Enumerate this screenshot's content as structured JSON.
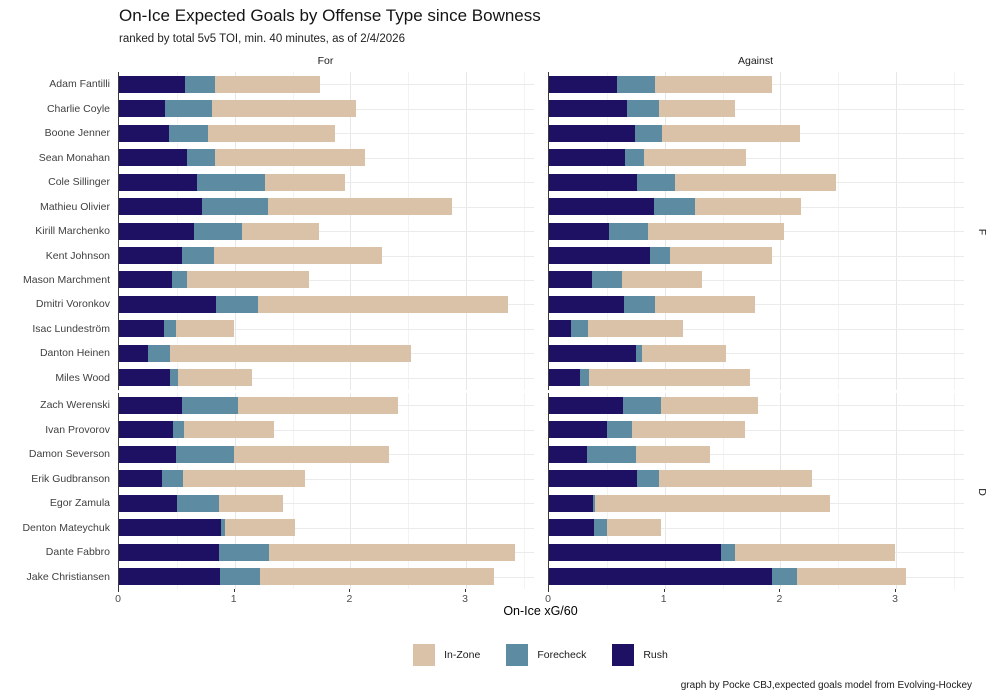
{
  "chart_data": {
    "type": "bar",
    "orientation": "horizontal",
    "stacked": true,
    "title": "On-Ice Expected Goals by Offense Type since Bowness",
    "subtitle": "ranked by total 5v5 TOI, min. 40 minutes, as of 2/4/2026",
    "xlabel": "On-Ice xG/60",
    "caption": "graph by Pocke CBJ,expected goals model from Evolving-Hockey",
    "facet_cols": [
      "For",
      "Against"
    ],
    "facet_rows": [
      "F",
      "D"
    ],
    "x_ticks": [
      0,
      1,
      2,
      3
    ],
    "x_max": 3.6,
    "grid": "major every 1.0, minor every 0.5, light gray on white",
    "legend": {
      "position": "bottom",
      "items": [
        {
          "key": "inzone",
          "label": "In-Zone",
          "color": "#d9c2a7"
        },
        {
          "key": "forecheck",
          "label": "Forecheck",
          "color": "#5c8ba2"
        },
        {
          "key": "rush",
          "label": "Rush",
          "color": "#1e1164"
        }
      ]
    },
    "segment_order": [
      "rush",
      "forecheck",
      "inzone"
    ],
    "players": [
      {
        "name": "Adam Fantilli",
        "group": "F",
        "for": {
          "rush": 0.57,
          "forecheck": 0.26,
          "inzone": 0.91
        },
        "against": {
          "rush": 0.59,
          "forecheck": 0.33,
          "inzone": 1.01
        }
      },
      {
        "name": "Charlie Coyle",
        "group": "F",
        "for": {
          "rush": 0.4,
          "forecheck": 0.4,
          "inzone": 1.25
        },
        "against": {
          "rush": 0.67,
          "forecheck": 0.28,
          "inzone": 0.66
        }
      },
      {
        "name": "Boone Jenner",
        "group": "F",
        "for": {
          "rush": 0.43,
          "forecheck": 0.34,
          "inzone": 1.1
        },
        "against": {
          "rush": 0.74,
          "forecheck": 0.24,
          "inzone": 1.19
        }
      },
      {
        "name": "Sean Monahan",
        "group": "F",
        "for": {
          "rush": 0.59,
          "forecheck": 0.24,
          "inzone": 1.3
        },
        "against": {
          "rush": 0.66,
          "forecheck": 0.16,
          "inzone": 0.88
        }
      },
      {
        "name": "Cole Sillinger",
        "group": "F",
        "for": {
          "rush": 0.67,
          "forecheck": 0.59,
          "inzone": 0.69
        },
        "against": {
          "rush": 0.76,
          "forecheck": 0.33,
          "inzone": 1.39
        }
      },
      {
        "name": "Mathieu Olivier",
        "group": "F",
        "for": {
          "rush": 0.72,
          "forecheck": 0.57,
          "inzone": 1.59
        },
        "against": {
          "rush": 0.91,
          "forecheck": 0.35,
          "inzone": 0.92
        }
      },
      {
        "name": "Kirill Marchenko",
        "group": "F",
        "for": {
          "rush": 0.65,
          "forecheck": 0.41,
          "inzone": 0.67
        },
        "against": {
          "rush": 0.52,
          "forecheck": 0.34,
          "inzone": 1.17
        }
      },
      {
        "name": "Kent Johnson",
        "group": "F",
        "for": {
          "rush": 0.54,
          "forecheck": 0.28,
          "inzone": 1.45
        },
        "against": {
          "rush": 0.87,
          "forecheck": 0.18,
          "inzone": 0.88
        }
      },
      {
        "name": "Mason Marchment",
        "group": "F",
        "for": {
          "rush": 0.46,
          "forecheck": 0.13,
          "inzone": 1.05
        },
        "against": {
          "rush": 0.37,
          "forecheck": 0.26,
          "inzone": 0.69
        }
      },
      {
        "name": "Dmitri Voronkov",
        "group": "F",
        "for": {
          "rush": 0.84,
          "forecheck": 0.36,
          "inzone": 2.16
        },
        "against": {
          "rush": 0.65,
          "forecheck": 0.27,
          "inzone": 0.86
        }
      },
      {
        "name": "Isac Lundeström",
        "group": "F",
        "for": {
          "rush": 0.39,
          "forecheck": 0.1,
          "inzone": 0.5
        },
        "against": {
          "rush": 0.19,
          "forecheck": 0.15,
          "inzone": 0.82
        }
      },
      {
        "name": "Danton Heinen",
        "group": "F",
        "for": {
          "rush": 0.25,
          "forecheck": 0.19,
          "inzone": 2.08
        },
        "against": {
          "rush": 0.75,
          "forecheck": 0.05,
          "inzone": 0.73
        }
      },
      {
        "name": "Miles Wood",
        "group": "F",
        "for": {
          "rush": 0.44,
          "forecheck": 0.07,
          "inzone": 0.64
        },
        "against": {
          "rush": 0.27,
          "forecheck": 0.08,
          "inzone": 1.39
        }
      },
      {
        "name": "Zach Werenski",
        "group": "D",
        "for": {
          "rush": 0.54,
          "forecheck": 0.49,
          "inzone": 1.38
        },
        "against": {
          "rush": 0.64,
          "forecheck": 0.33,
          "inzone": 0.84
        }
      },
      {
        "name": "Ivan Provorov",
        "group": "D",
        "for": {
          "rush": 0.47,
          "forecheck": 0.09,
          "inzone": 0.78
        },
        "against": {
          "rush": 0.5,
          "forecheck": 0.22,
          "inzone": 0.97
        }
      },
      {
        "name": "Damon Severson",
        "group": "D",
        "for": {
          "rush": 0.49,
          "forecheck": 0.5,
          "inzone": 1.34
        },
        "against": {
          "rush": 0.33,
          "forecheck": 0.42,
          "inzone": 0.64
        }
      },
      {
        "name": "Erik Gudbranson",
        "group": "D",
        "for": {
          "rush": 0.37,
          "forecheck": 0.18,
          "inzone": 1.06
        },
        "against": {
          "rush": 0.76,
          "forecheck": 0.19,
          "inzone": 1.32
        }
      },
      {
        "name": "Egor Zamula",
        "group": "D",
        "for": {
          "rush": 0.5,
          "forecheck": 0.36,
          "inzone": 0.56
        },
        "against": {
          "rush": 0.38,
          "forecheck": 0.02,
          "inzone": 2.03
        }
      },
      {
        "name": "Denton Mateychuk",
        "group": "D",
        "for": {
          "rush": 0.88,
          "forecheck": 0.04,
          "inzone": 0.6
        },
        "against": {
          "rush": 0.39,
          "forecheck": 0.11,
          "inzone": 0.47
        }
      },
      {
        "name": "Dante Fabbro",
        "group": "D",
        "for": {
          "rush": 0.86,
          "forecheck": 0.44,
          "inzone": 2.12
        },
        "against": {
          "rush": 1.49,
          "forecheck": 0.12,
          "inzone": 1.38
        }
      },
      {
        "name": "Jake Christiansen",
        "group": "D",
        "for": {
          "rush": 0.87,
          "forecheck": 0.35,
          "inzone": 2.02
        },
        "against": {
          "rush": 1.93,
          "forecheck": 0.21,
          "inzone": 0.95
        }
      }
    ]
  }
}
